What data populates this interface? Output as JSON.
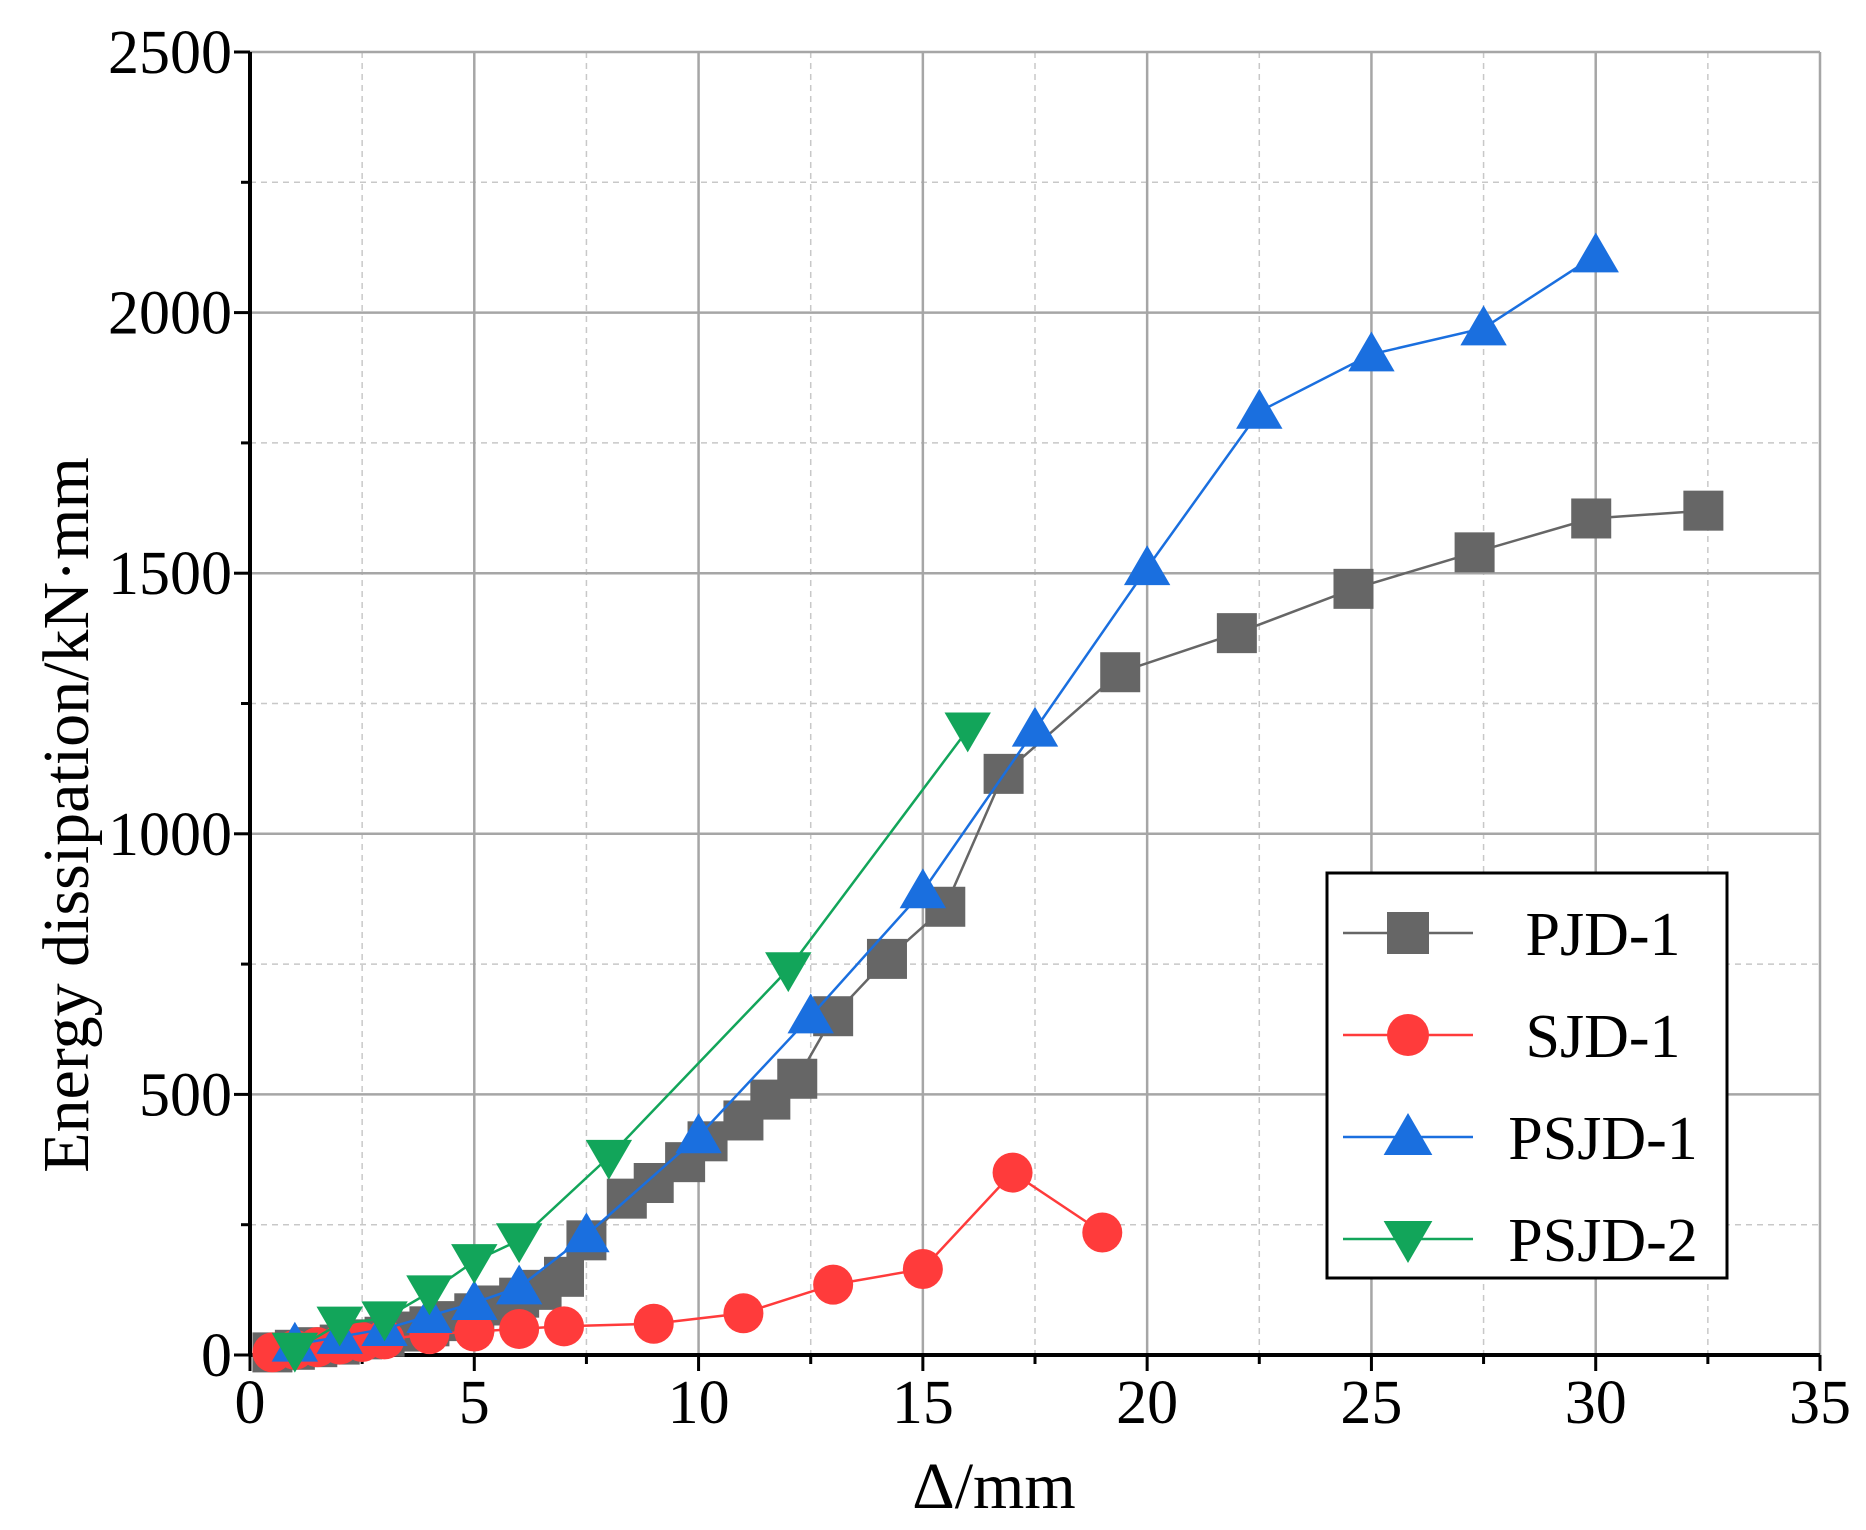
{
  "chart_data": {
    "type": "line",
    "title": "",
    "xlabel": "Δ/mm",
    "ylabel": "Energy dissipation/kN·mm",
    "xlim": [
      0,
      35
    ],
    "ylim": [
      0,
      2500
    ],
    "x_ticks": [
      0,
      5,
      10,
      15,
      20,
      25,
      30,
      35
    ],
    "y_ticks": [
      0,
      500,
      1000,
      1500,
      2000,
      2500
    ],
    "grid": true,
    "legend_position": "bottom-right",
    "series": [
      {
        "name": "PJD-1",
        "color": "#666666",
        "marker": "square",
        "points": [
          [
            0.5,
            5
          ],
          [
            1,
            10
          ],
          [
            1.5,
            15
          ],
          [
            2,
            20
          ],
          [
            2.5,
            30
          ],
          [
            3,
            35
          ],
          [
            3.5,
            45
          ],
          [
            4,
            55
          ],
          [
            4.5,
            65
          ],
          [
            5,
            80
          ],
          [
            5.5,
            95
          ],
          [
            6,
            110
          ],
          [
            6.5,
            125
          ],
          [
            7,
            150
          ],
          [
            7.5,
            220
          ],
          [
            8.4,
            300
          ],
          [
            9,
            330
          ],
          [
            9.7,
            370
          ],
          [
            10.2,
            410
          ],
          [
            11,
            450
          ],
          [
            11.6,
            490
          ],
          [
            12.2,
            530
          ],
          [
            13,
            650
          ],
          [
            14.2,
            760
          ],
          [
            15.5,
            860
          ],
          [
            16.8,
            1115
          ],
          [
            19.4,
            1310
          ],
          [
            22,
            1385
          ],
          [
            24.6,
            1470
          ],
          [
            27.3,
            1540
          ],
          [
            29.9,
            1605
          ],
          [
            32.4,
            1620
          ]
        ]
      },
      {
        "name": "SJD-1",
        "color": "#ff3b3b",
        "marker": "circle",
        "points": [
          [
            0.5,
            5
          ],
          [
            1,
            10
          ],
          [
            1.5,
            15
          ],
          [
            2,
            20
          ],
          [
            2.5,
            25
          ],
          [
            3,
            30
          ],
          [
            4,
            40
          ],
          [
            5,
            45
          ],
          [
            6,
            50
          ],
          [
            7,
            55
          ],
          [
            9,
            60
          ],
          [
            11,
            80
          ],
          [
            13,
            135
          ],
          [
            15,
            165
          ],
          [
            17,
            350
          ],
          [
            19,
            235
          ]
        ]
      },
      {
        "name": "PSJD-1",
        "color": "#1a6fdf",
        "marker": "triangle-up",
        "points": [
          [
            1,
            20
          ],
          [
            2,
            35
          ],
          [
            3,
            50
          ],
          [
            4,
            75
          ],
          [
            5,
            100
          ],
          [
            6,
            130
          ],
          [
            7.5,
            230
          ],
          [
            10,
            420
          ],
          [
            12.5,
            650
          ],
          [
            15,
            890
          ],
          [
            17.5,
            1200
          ],
          [
            20,
            1510
          ],
          [
            22.5,
            1810
          ],
          [
            25,
            1920
          ],
          [
            27.5,
            1970
          ],
          [
            30,
            2110
          ]
        ]
      },
      {
        "name": "PSJD-2",
        "color": "#12a55a",
        "marker": "triangle-down",
        "points": [
          [
            1,
            10
          ],
          [
            2,
            60
          ],
          [
            3,
            70
          ],
          [
            4,
            120
          ],
          [
            5,
            180
          ],
          [
            6,
            220
          ],
          [
            8,
            380
          ],
          [
            12,
            740
          ],
          [
            16,
            1200
          ]
        ]
      }
    ]
  }
}
